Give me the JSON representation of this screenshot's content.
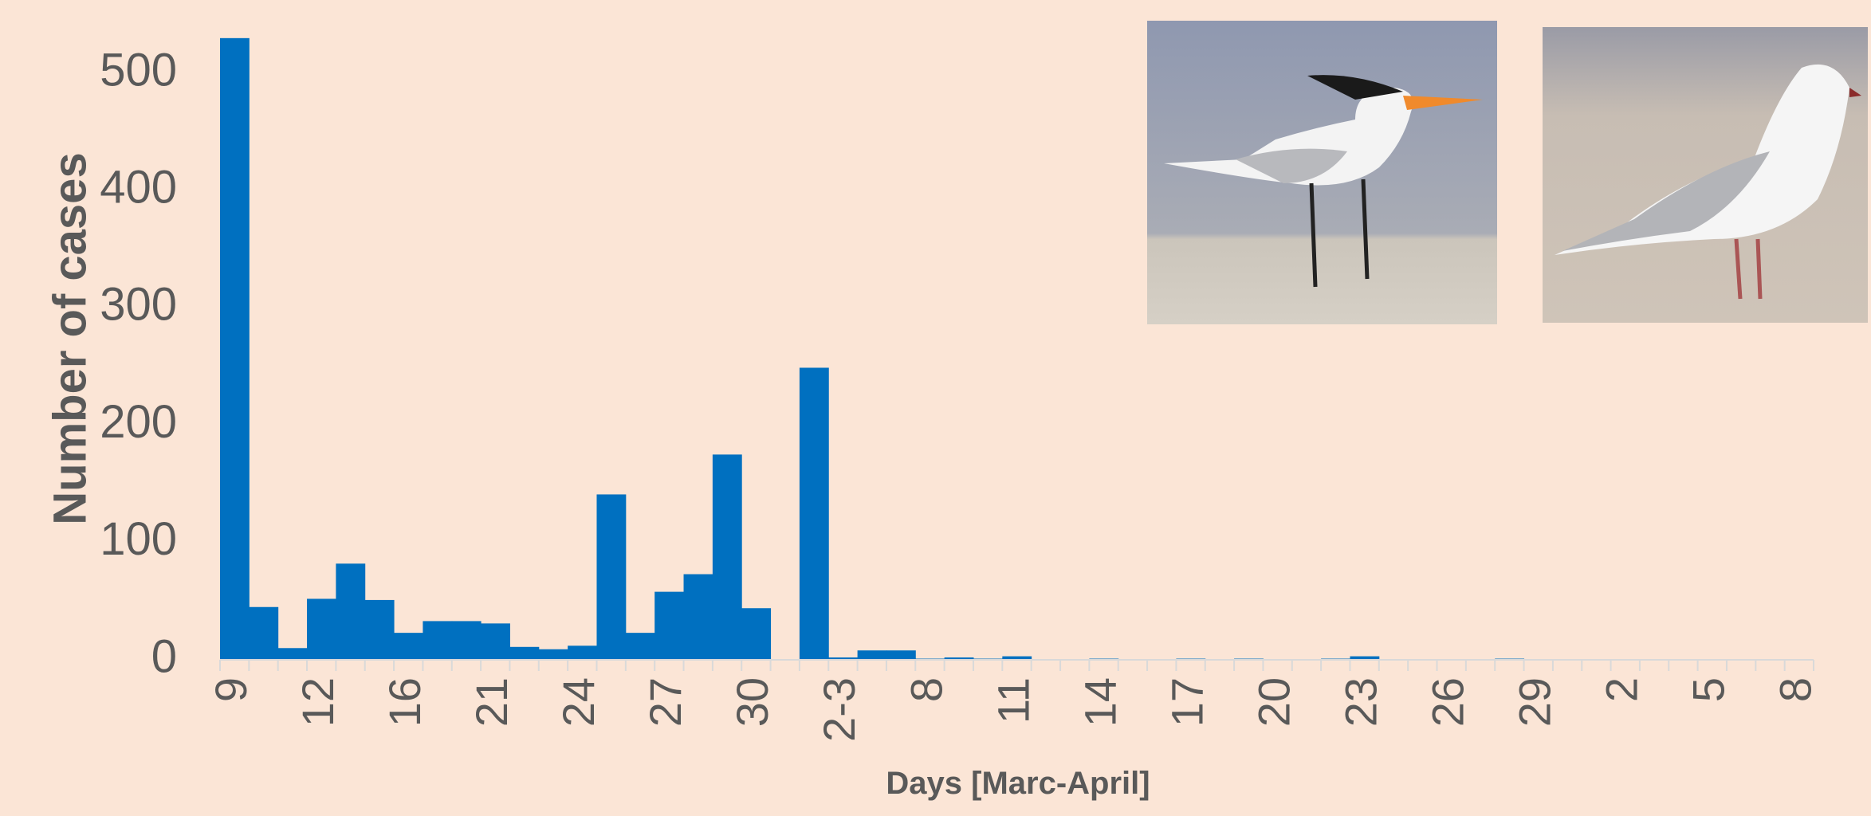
{
  "chart_data": {
    "type": "bar",
    "x_label": "Days [Marc-April]",
    "y_label": "Number of cases",
    "color": "#0070c0",
    "categories": [
      "9",
      null,
      null,
      "12",
      null,
      null,
      "16",
      null,
      null,
      "21",
      null,
      null,
      "24",
      null,
      null,
      "27",
      null,
      null,
      "30",
      null,
      null,
      "2-3",
      null,
      null,
      "8",
      null,
      null,
      "11",
      null,
      null,
      "14",
      null,
      null,
      "17",
      null,
      null,
      "20",
      null,
      null,
      "23",
      null,
      null,
      "26",
      null,
      null,
      "29",
      null,
      null,
      "2",
      null,
      null,
      "5",
      null,
      null,
      "8"
    ],
    "values": [
      530,
      45,
      10,
      52,
      82,
      51,
      23,
      33,
      33,
      31,
      11,
      9,
      12,
      141,
      23,
      58,
      73,
      175,
      44,
      0,
      249,
      2,
      8,
      8,
      1,
      2,
      1,
      3,
      0,
      0,
      1,
      0,
      0,
      1,
      0,
      1,
      0,
      0,
      1,
      3,
      0,
      0,
      0,
      0,
      1,
      0,
      0,
      0,
      0,
      0,
      0,
      0,
      0,
      0,
      0
    ],
    "ylim": [
      0,
      540
    ],
    "yticks": [
      0,
      100,
      200,
      300,
      400,
      500
    ]
  }
}
